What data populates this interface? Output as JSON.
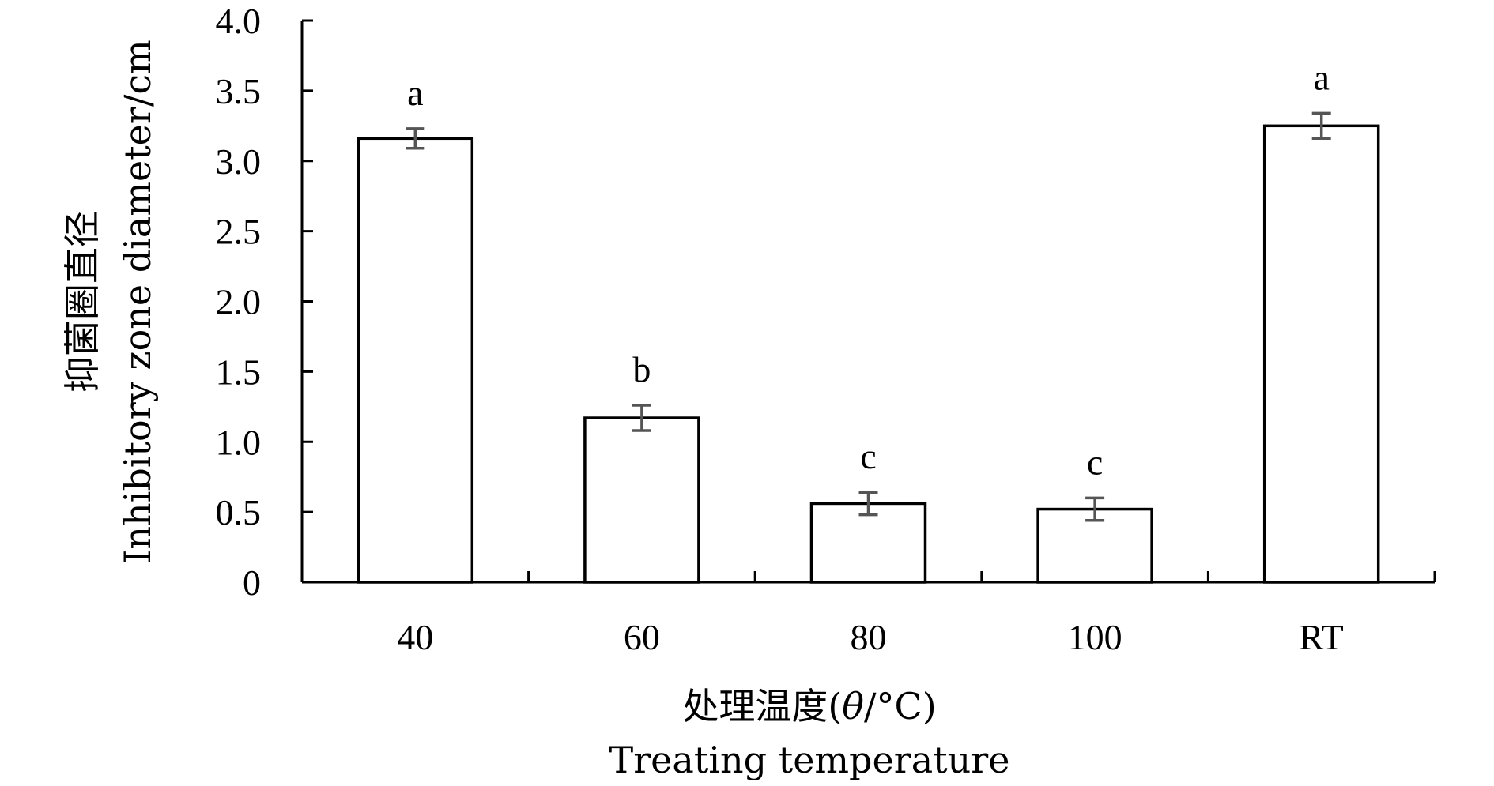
{
  "chart_data": {
    "type": "bar",
    "categories": [
      "40",
      "60",
      "80",
      "100",
      "RT"
    ],
    "values": [
      3.16,
      1.17,
      0.56,
      0.52,
      3.25
    ],
    "error": [
      0.07,
      0.09,
      0.08,
      0.08,
      0.09
    ],
    "significance_labels": [
      "a",
      "b",
      "c",
      "c",
      "a"
    ],
    "xlabel": {
      "line1_prefix": "处理温度(",
      "line1_symbol": "θ",
      "line1_suffix": "/°C)",
      "line2": "Treating temperature"
    },
    "ylabel": {
      "line1": "抑菌圈直径",
      "line2": "Inhibitory zone diameter/cm"
    },
    "ylim": [
      0,
      4.0
    ],
    "yticks": [
      "0",
      "0.5",
      "1.0",
      "1.5",
      "2.0",
      "2.5",
      "3.0",
      "3.5",
      "4.0"
    ],
    "grid": false,
    "bar_fill": "#ffffff",
    "bar_stroke": "#000000",
    "error_color": "#555555"
  }
}
